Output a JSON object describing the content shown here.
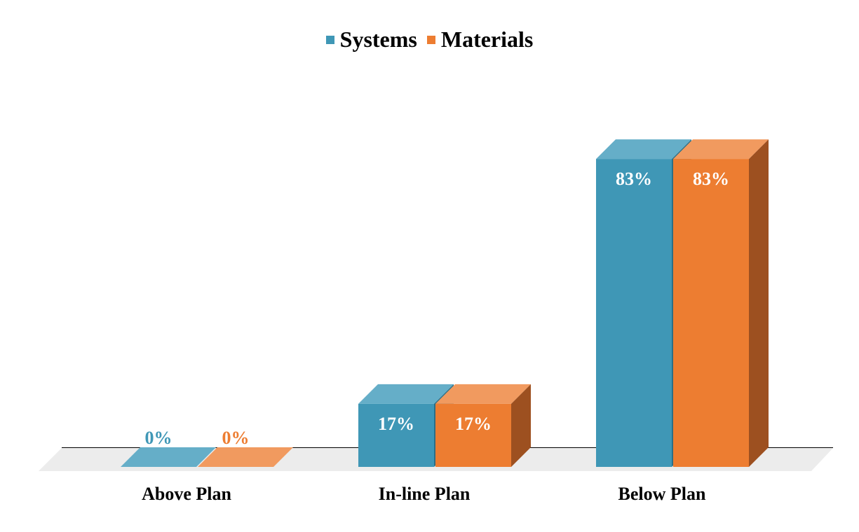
{
  "chart_data": {
    "type": "bar",
    "categories": [
      "Above Plan",
      "In-line Plan",
      "Below Plan"
    ],
    "series": [
      {
        "name": "Systems",
        "values": [
          0,
          17,
          83
        ],
        "labels": [
          "0%",
          "17%",
          "83%"
        ]
      },
      {
        "name": "Materials",
        "values": [
          0,
          17,
          83
        ],
        "labels": [
          "0%",
          "17%",
          "83%"
        ]
      }
    ],
    "value_unit": "%",
    "legend_position": "top",
    "three_d": true,
    "grid": false,
    "title": "",
    "xlabel": "",
    "ylabel": "",
    "ylim": [
      0,
      100
    ]
  },
  "colors": {
    "series": [
      "#3f97b6",
      "#ed7d31"
    ],
    "series_top": [
      "#65aec8",
      "#f19a5f"
    ],
    "series_side": [
      "#2b6f87",
      "#9d5020"
    ],
    "floor": "#ececec",
    "baseline": "#000000",
    "label_inside": "#ffffff"
  }
}
